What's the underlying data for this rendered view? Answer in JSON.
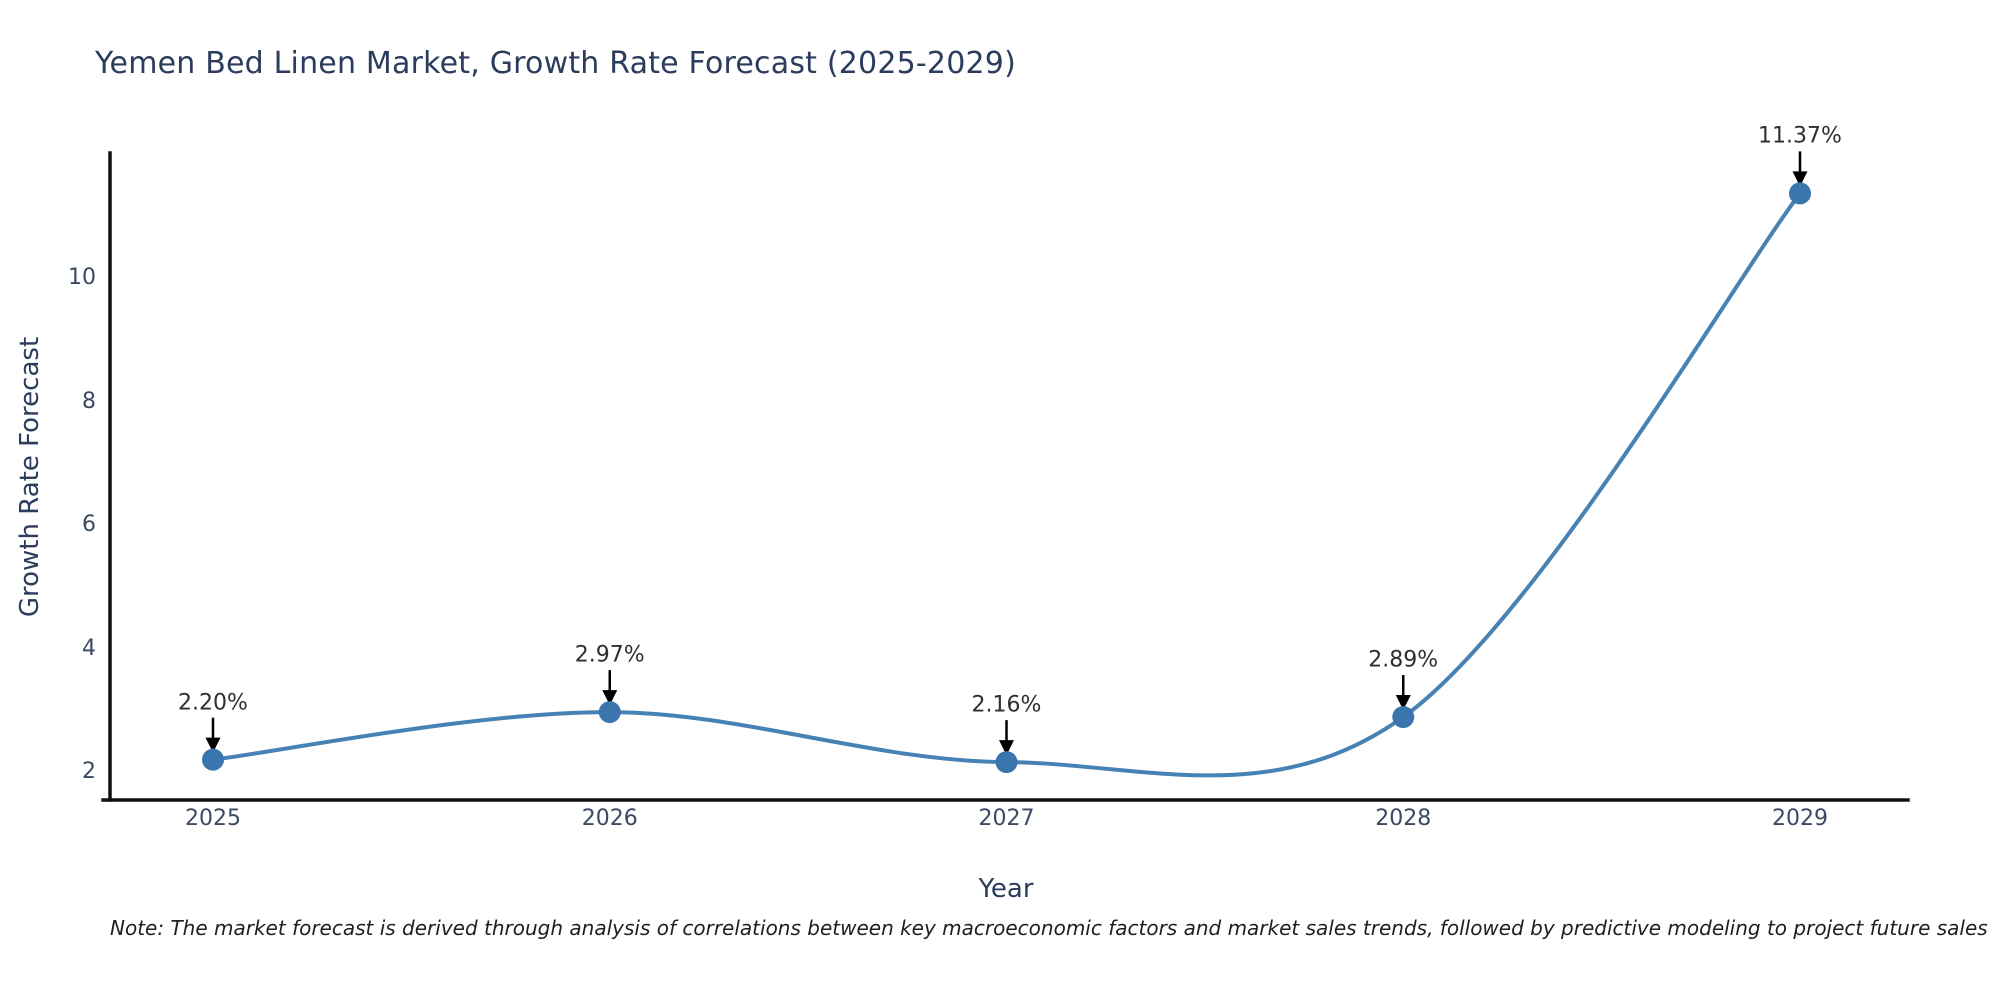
{
  "page": {
    "background": "#ffffff"
  },
  "chart_data": {
    "type": "line",
    "title": "Yemen Bed Linen Market, Growth Rate Forecast (2025-2029)",
    "xlabel": "Year",
    "ylabel": "Growth Rate Forecast",
    "categories": [
      "2025",
      "2026",
      "2027",
      "2028",
      "2029"
    ],
    "series": [
      {
        "name": "Growth Rate Forecast",
        "values": [
          2.2,
          2.97,
          2.16,
          2.89,
          11.37
        ]
      }
    ],
    "point_labels": [
      "2.20%",
      "2.97%",
      "2.16%",
      "2.89%",
      "11.37%"
    ],
    "yticks": [
      2,
      4,
      6,
      8,
      10
    ],
    "ylim": [
      1.55,
      12.05
    ],
    "grid": false,
    "legend_position": "none",
    "line_color": "#4682b4",
    "marker_color": "#3a76ad",
    "axis_color": "#111111",
    "arrow_color": "#000000",
    "title_color": "#2b3c5c",
    "tick_color": "#3b4a63"
  },
  "note": {
    "text": "Note: The market forecast is derived through analysis of correlations between key macroeconomic factors and market sales trends, followed by predictive modeling to project future sales"
  }
}
